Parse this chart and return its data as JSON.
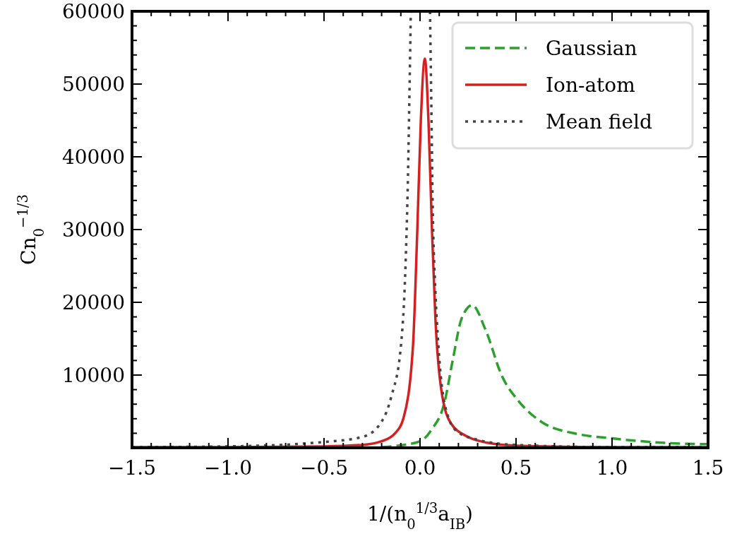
{
  "chart_data": {
    "type": "line",
    "xlabel": "1/(n$_{0}$$^{1/3}$a$_{IB}$)",
    "ylabel": "Cn$_{0}$$^{−1/3}$",
    "xlim": [
      -1.5,
      1.5
    ],
    "ylim": [
      0,
      60000
    ],
    "xticks": [
      {
        "value": -1.5,
        "label": "−1.5"
      },
      {
        "value": -1.4,
        "label": null
      },
      {
        "value": -1.3,
        "label": null
      },
      {
        "value": -1.2,
        "label": null
      },
      {
        "value": -1.1,
        "label": null
      },
      {
        "value": -1.0,
        "label": "−1.0"
      },
      {
        "value": -0.9,
        "label": null
      },
      {
        "value": -0.8,
        "label": null
      },
      {
        "value": -0.7,
        "label": null
      },
      {
        "value": -0.6,
        "label": null
      },
      {
        "value": -0.5,
        "label": "−0.5"
      },
      {
        "value": -0.4,
        "label": null
      },
      {
        "value": -0.3,
        "label": null
      },
      {
        "value": -0.2,
        "label": null
      },
      {
        "value": -0.1,
        "label": null
      },
      {
        "value": 0,
        "label": "0.0"
      },
      {
        "value": 0.1,
        "label": null
      },
      {
        "value": 0.2,
        "label": null
      },
      {
        "value": 0.3,
        "label": null
      },
      {
        "value": 0.4,
        "label": null
      },
      {
        "value": 0.5,
        "label": "0.5"
      },
      {
        "value": 0.6,
        "label": null
      },
      {
        "value": 0.7,
        "label": null
      },
      {
        "value": 0.8,
        "label": null
      },
      {
        "value": 0.9,
        "label": null
      },
      {
        "value": 1.0,
        "label": "1.0"
      },
      {
        "value": 1.1,
        "label": null
      },
      {
        "value": 1.2,
        "label": null
      },
      {
        "value": 1.3,
        "label": null
      },
      {
        "value": 1.4,
        "label": null
      },
      {
        "value": 1.5,
        "label": "1.5"
      }
    ],
    "yticks": [
      {
        "value": 2000,
        "label": null
      },
      {
        "value": 4000,
        "label": null
      },
      {
        "value": 6000,
        "label": null
      },
      {
        "value": 8000,
        "label": null
      },
      10000,
      {
        "value": 12000,
        "label": null
      },
      {
        "value": 14000,
        "label": null
      },
      {
        "value": 16000,
        "label": null
      },
      {
        "value": 18000,
        "label": null
      },
      20000,
      {
        "value": 22000,
        "label": null
      },
      {
        "value": 24000,
        "label": null
      },
      {
        "value": 26000,
        "label": null
      },
      {
        "value": 28000,
        "label": null
      },
      30000,
      {
        "value": 32000,
        "label": null
      },
      {
        "value": 34000,
        "label": null
      },
      {
        "value": 36000,
        "label": null
      },
      {
        "value": 38000,
        "label": null
      },
      40000,
      {
        "value": 42000,
        "label": null
      },
      {
        "value": 44000,
        "label": null
      },
      {
        "value": 46000,
        "label": null
      },
      {
        "value": 48000,
        "label": null
      },
      50000,
      {
        "value": 52000,
        "label": null
      },
      {
        "value": 54000,
        "label": null
      },
      {
        "value": 56000,
        "label": null
      },
      {
        "value": 58000,
        "label": null
      },
      60000
    ],
    "grid": false,
    "legend": "top right",
    "series": [
      {
        "name": "Gaussian",
        "color": "#2ca02c",
        "line_style": "dashed",
        "x": [
          -0.2,
          -0.15,
          0.0,
          0.06,
          0.127,
          0.17,
          0.217,
          0.272,
          0.34,
          0.426,
          0.514,
          0.636,
          0.82,
          1.0,
          1.26,
          1.5
        ],
        "values": [
          100,
          200,
          900,
          2500,
          6200,
          12000,
          17800,
          19600,
          16300,
          9900,
          6400,
          3500,
          1900,
          1300,
          700,
          500
        ]
      },
      {
        "name": "Ion-atom",
        "color": "#d62020",
        "line_style": "solid",
        "x": [
          -1.5,
          -1.0,
          -0.5,
          -0.3,
          -0.2,
          -0.13,
          -0.085,
          -0.037,
          -0.015,
          0.004,
          0.025,
          0.044,
          0.063,
          0.08,
          0.11,
          0.16,
          0.25,
          0.35,
          0.5,
          1.0,
          1.5
        ],
        "values": [
          100,
          100,
          200,
          400,
          900,
          2000,
          4200,
          13900,
          29300,
          44900,
          53500,
          44900,
          29300,
          17800,
          8100,
          3400,
          1500,
          700,
          300,
          100,
          100
        ]
      },
      {
        "name": "Mean field",
        "color": "#444444",
        "line_style": "dotted",
        "x": [
          -1.5,
          -1.0,
          -0.5,
          -0.3,
          -0.2,
          -0.15,
          -0.1,
          -0.075,
          -0.063,
          -0.055,
          -0.048,
          0.0,
          0.052,
          0.058,
          0.066,
          0.08,
          0.096,
          0.127,
          0.19,
          0.3,
          0.5,
          1.0,
          1.5
        ],
        "values": [
          100,
          200,
          800,
          1500,
          3600,
          7000,
          13900,
          25500,
          37100,
          48800,
          60000,
          null,
          60000,
          48800,
          33200,
          21600,
          13900,
          6200,
          2300,
          1100,
          400,
          100,
          100
        ]
      }
    ]
  }
}
